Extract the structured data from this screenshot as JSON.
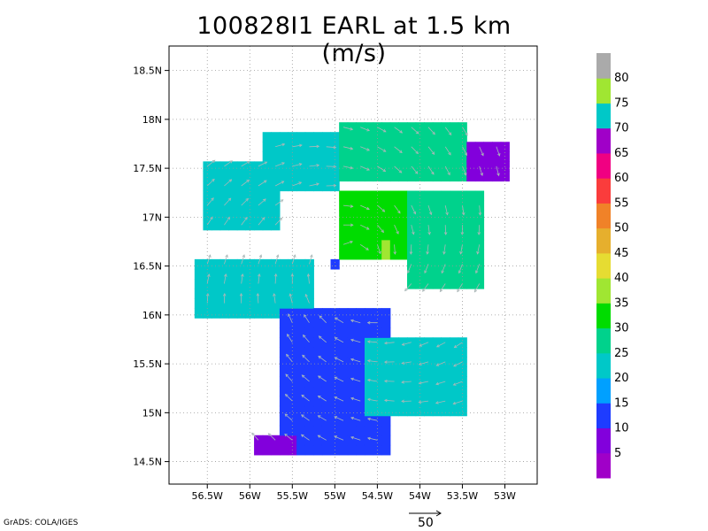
{
  "title": "100828I1 EARL at 1.5 km (m/s)",
  "credit": "GrADS: COLA/IGES",
  "reference_vector": {
    "label": "50",
    "magnitude": 50
  },
  "chart_data": {
    "type": "heatmap",
    "title": "100828I1 EARL at 1.5 km (m/s)",
    "variable": "wind speed with wind vectors",
    "units": "m/s",
    "xlabel": "",
    "ylabel": "",
    "x_ticks": [
      {
        "value": -56.5,
        "label": "56.5W"
      },
      {
        "value": -56.0,
        "label": "56W"
      },
      {
        "value": -55.5,
        "label": "55.5W"
      },
      {
        "value": -55.0,
        "label": "55W"
      },
      {
        "value": -54.5,
        "label": "54.5W"
      },
      {
        "value": -54.0,
        "label": "54W"
      },
      {
        "value": -53.5,
        "label": "53.5W"
      },
      {
        "value": -53.0,
        "label": "53W"
      }
    ],
    "y_ticks": [
      {
        "value": 14.5,
        "label": "14.5N"
      },
      {
        "value": 15.0,
        "label": "15N"
      },
      {
        "value": 15.5,
        "label": "15.5N"
      },
      {
        "value": 16.0,
        "label": "16N"
      },
      {
        "value": 16.5,
        "label": "16.5N"
      },
      {
        "value": 17.0,
        "label": "17N"
      },
      {
        "value": 17.5,
        "label": "17.5N"
      },
      {
        "value": 18.0,
        "label": "18N"
      },
      {
        "value": 18.5,
        "label": "18.5N"
      }
    ],
    "xlim": [
      -56.95,
      -52.62
    ],
    "ylim": [
      14.27,
      18.75
    ],
    "grid": true,
    "center": {
      "lon": -54.75,
      "lat": 16.55
    },
    "colorbar": {
      "levels": [
        5,
        10,
        15,
        20,
        25,
        30,
        35,
        40,
        45,
        50,
        55,
        60,
        65,
        70,
        75,
        80
      ],
      "colors": [
        "#a000c8",
        "#8200dc",
        "#1e3cff",
        "#00a0ff",
        "#00c8c8",
        "#00d28c",
        "#00dc00",
        "#a0e632",
        "#e6dc32",
        "#e6af2d",
        "#f08228",
        "#fa3c3c",
        "#f00082",
        "#a000c8",
        "#00c8c8",
        "#a0e632",
        "#aaaaaa"
      ]
    },
    "speed_field": [
      {
        "lon_min": -56.5,
        "lon_max": -55.6,
        "lat_min": 16.9,
        "lat_max": 17.6,
        "speed": 24
      },
      {
        "lon_min": -55.8,
        "lon_max": -54.9,
        "lat_min": 17.3,
        "lat_max": 17.9,
        "speed": 24
      },
      {
        "lon_min": -54.9,
        "lon_max": -53.4,
        "lat_min": 17.4,
        "lat_max": 18.0,
        "speed": 25
      },
      {
        "lon_min": -53.4,
        "lon_max": -52.9,
        "lat_min": 17.4,
        "lat_max": 17.8,
        "speed": 8
      },
      {
        "lon_min": -54.9,
        "lon_max": -54.0,
        "lat_min": 16.6,
        "lat_max": 17.3,
        "speed": 31
      },
      {
        "lon_min": -54.4,
        "lon_max": -54.3,
        "lat_min": 16.6,
        "lat_max": 16.8,
        "speed": 38
      },
      {
        "lon_min": -54.1,
        "lon_max": -53.2,
        "lat_min": 16.3,
        "lat_max": 17.3,
        "speed": 25
      },
      {
        "lon_min": -56.6,
        "lon_max": -55.2,
        "lat_min": 16.0,
        "lat_max": 16.6,
        "speed": 20
      },
      {
        "lon_min": -55.0,
        "lon_max": -54.9,
        "lat_min": 16.45,
        "lat_max": 16.55,
        "speed": 12
      },
      {
        "lon_min": -55.6,
        "lon_max": -54.3,
        "lat_min": 14.6,
        "lat_max": 16.1,
        "speed": 13
      },
      {
        "lon_min": -54.6,
        "lon_max": -53.4,
        "lat_min": 15.0,
        "lat_max": 15.8,
        "speed": 24
      },
      {
        "lon_min": -55.9,
        "lon_max": -55.4,
        "lat_min": 14.6,
        "lat_max": 14.8,
        "speed": 7
      }
    ]
  }
}
